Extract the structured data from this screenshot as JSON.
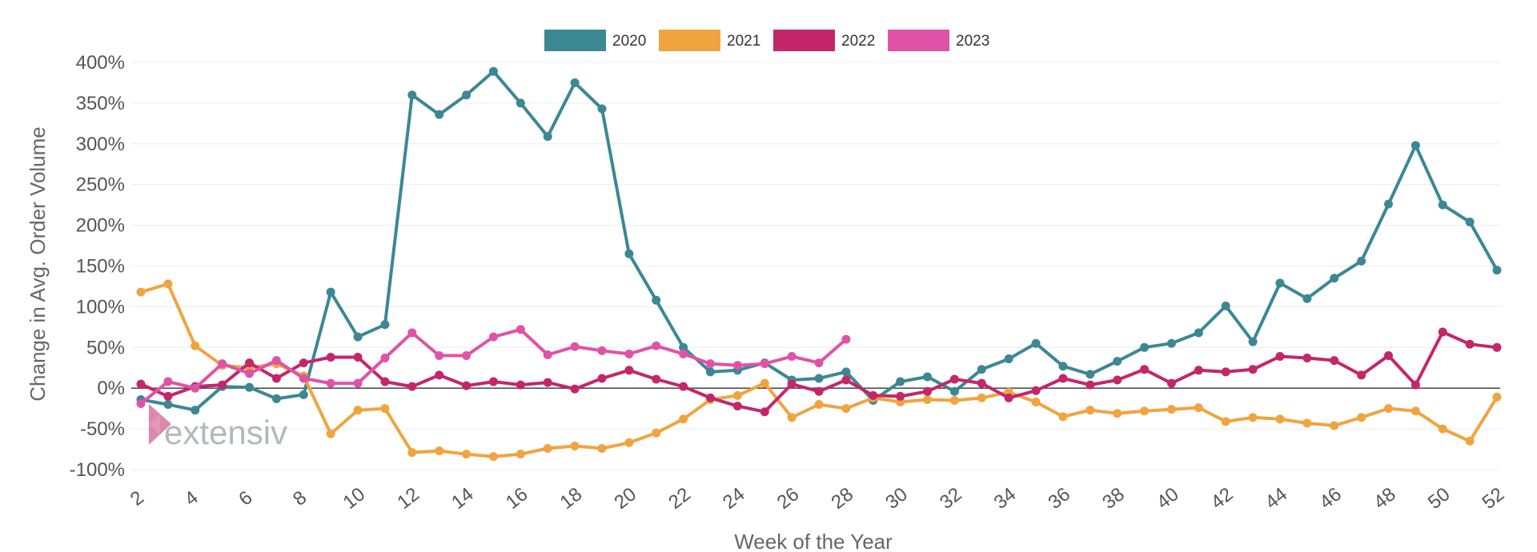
{
  "chart_data": {
    "type": "line",
    "title": "",
    "xlabel": "Week of the Year",
    "ylabel": "Change in Avg. Order Volume",
    "ylim": [
      -100,
      400
    ],
    "yticks": [
      400,
      350,
      300,
      250,
      200,
      150,
      100,
      50,
      0,
      -50,
      -100
    ],
    "ytick_labels": [
      "400%",
      "350%",
      "300%",
      "250%",
      "200%",
      "150%",
      "100%",
      "50%",
      "0%",
      "-50%",
      "-100%"
    ],
    "xlim": [
      2,
      52
    ],
    "xticks": [
      2,
      4,
      6,
      8,
      10,
      12,
      14,
      16,
      18,
      20,
      22,
      24,
      26,
      28,
      30,
      32,
      34,
      36,
      38,
      40,
      42,
      44,
      46,
      48,
      50,
      52
    ],
    "xtick_labels": [
      "2",
      "4",
      "6",
      "8",
      "10",
      "12",
      "14",
      "16",
      "18",
      "20",
      "22",
      "24",
      "26",
      "28",
      "30",
      "32",
      "34",
      "36",
      "38",
      "40",
      "42",
      "44",
      "46",
      "48",
      "50",
      "52"
    ],
    "legend_position": "top-center",
    "zero_line": true,
    "series": [
      {
        "name": "2020",
        "color": "#3b8894",
        "x": [
          2,
          3,
          4,
          5,
          6,
          7,
          8,
          9,
          10,
          11,
          12,
          13,
          14,
          15,
          16,
          17,
          18,
          19,
          20,
          21,
          22,
          23,
          24,
          25,
          26,
          27,
          28,
          29,
          30,
          31,
          32,
          33,
          34,
          35,
          36,
          37,
          38,
          39,
          40,
          41,
          42,
          43,
          44,
          45,
          46,
          47,
          48,
          49,
          50,
          51,
          52
        ],
        "values": [
          -14,
          -20,
          -27,
          2,
          1,
          -13,
          -8,
          118,
          63,
          78,
          360,
          336,
          360,
          389,
          350,
          309,
          375,
          343,
          165,
          108,
          50,
          20,
          22,
          31,
          10,
          12,
          20,
          -15,
          8,
          14,
          -4,
          23,
          36,
          55,
          27,
          17,
          33,
          50,
          55,
          68,
          101,
          57,
          129,
          110,
          135,
          156,
          226,
          298,
          225,
          204,
          145
        ]
      },
      {
        "name": "2021",
        "color": "#f0a440",
        "x": [
          2,
          3,
          4,
          5,
          6,
          7,
          8,
          9,
          10,
          11,
          12,
          13,
          14,
          15,
          16,
          17,
          18,
          19,
          20,
          21,
          22,
          23,
          24,
          25,
          26,
          27,
          28,
          29,
          30,
          31,
          32,
          33,
          34,
          35,
          36,
          37,
          38,
          39,
          40,
          41,
          42,
          43,
          44,
          45,
          46,
          47,
          48,
          49,
          50,
          51,
          52
        ],
        "values": [
          118,
          128,
          52,
          28,
          25,
          30,
          15,
          -56,
          -27,
          -25,
          -79,
          -77,
          -81,
          -84,
          -81,
          -74,
          -71,
          -74,
          -67,
          -55,
          -38,
          -14,
          -9,
          6,
          -36,
          -20,
          -25,
          -12,
          -17,
          -14,
          -15,
          -12,
          -5,
          -17,
          -35,
          -27,
          -31,
          -28,
          -26,
          -24,
          -41,
          -36,
          -38,
          -43,
          -46,
          -36,
          -25,
          -28,
          -50,
          -65,
          -11
        ]
      },
      {
        "name": "2022",
        "color": "#c4266a",
        "x": [
          2,
          3,
          4,
          5,
          6,
          7,
          8,
          9,
          10,
          11,
          12,
          13,
          14,
          15,
          16,
          17,
          18,
          19,
          20,
          21,
          22,
          23,
          24,
          25,
          26,
          27,
          28,
          29,
          30,
          31,
          32,
          33,
          34,
          35,
          36,
          37,
          38,
          39,
          40,
          41,
          42,
          43,
          44,
          45,
          46,
          47,
          48,
          49,
          50,
          51,
          52
        ],
        "values": [
          5,
          -10,
          2,
          4,
          31,
          12,
          31,
          38,
          38,
          8,
          2,
          16,
          3,
          8,
          4,
          7,
          -1,
          12,
          22,
          11,
          2,
          -12,
          -22,
          -29,
          5,
          -4,
          10,
          -9,
          -10,
          -4,
          11,
          6,
          -12,
          -3,
          12,
          4,
          10,
          23,
          6,
          22,
          20,
          23,
          39,
          37,
          34,
          16,
          40,
          4,
          69,
          54,
          50
        ]
      },
      {
        "name": "2023",
        "color": "#e052a8",
        "x": [
          2,
          3,
          4,
          5,
          6,
          7,
          8,
          9,
          10,
          11,
          12,
          13,
          14,
          15,
          16,
          17,
          18,
          19,
          20,
          21,
          22,
          23,
          24,
          25,
          26,
          27,
          28
        ],
        "values": [
          -19,
          8,
          0,
          30,
          18,
          34,
          12,
          6,
          6,
          37,
          68,
          40,
          40,
          63,
          72,
          41,
          51,
          46,
          42,
          52,
          42,
          30,
          28,
          30,
          39,
          31,
          60
        ]
      }
    ]
  },
  "watermark": {
    "brand": "extensiv"
  }
}
